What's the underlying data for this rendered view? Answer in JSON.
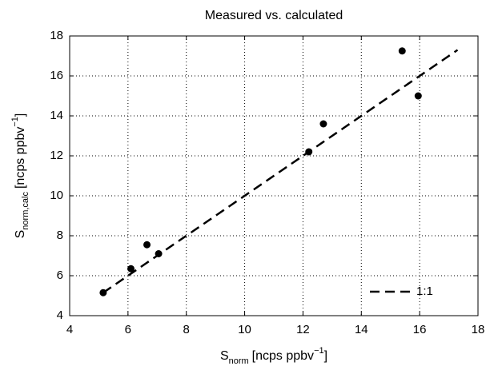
{
  "chart_data": {
    "type": "scatter",
    "title": "Measured vs. calculated",
    "xlabel": {
      "main": "S",
      "sub": "norm",
      "unit": "[ncps ppbv",
      "sup": "−1",
      "close": "]"
    },
    "ylabel": {
      "main": "S",
      "sub": "norm,calc",
      "unit": "[ncps ppbv",
      "sup": "−1",
      "close": "]"
    },
    "xlim": [
      4,
      18
    ],
    "ylim": [
      4,
      18
    ],
    "xticks": [
      4,
      6,
      8,
      10,
      12,
      14,
      16,
      18
    ],
    "yticks": [
      4,
      6,
      8,
      10,
      12,
      14,
      16,
      18
    ],
    "grid": true,
    "legend": "lower right",
    "series": [
      {
        "type": "scatter",
        "color": "#000000",
        "x": [
          5.15,
          6.1,
          6.65,
          7.05,
          12.2,
          12.7,
          15.4,
          15.95
        ],
        "values": [
          5.15,
          6.35,
          7.55,
          7.1,
          12.2,
          13.6,
          17.25,
          15.0
        ]
      },
      {
        "type": "line",
        "name": "1:1",
        "color": "#000000",
        "dashed": true,
        "x": [
          5.15,
          17.3
        ],
        "values": [
          5.15,
          17.3
        ]
      }
    ]
  }
}
